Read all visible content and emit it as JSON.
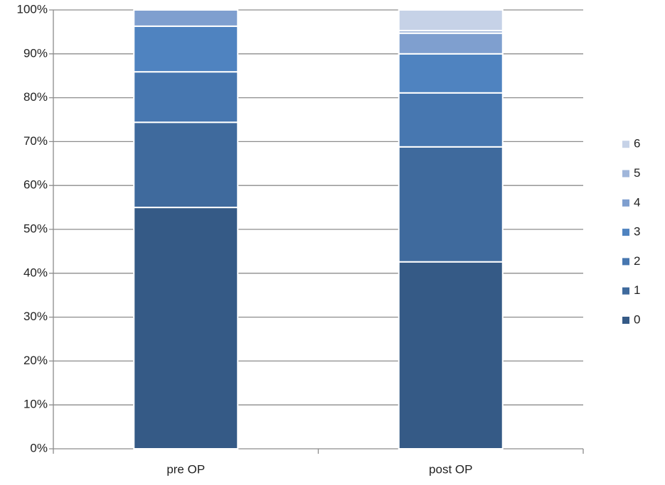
{
  "chart_data": {
    "type": "stacked-bar",
    "categories": [
      "pre OP",
      "post OP"
    ],
    "series": [
      {
        "name": "0",
        "color": "#355a86",
        "values": [
          55.0,
          42.6
        ]
      },
      {
        "name": "1",
        "color": "#3f6a9d",
        "values": [
          19.4,
          26.2
        ]
      },
      {
        "name": "2",
        "color": "#4777b0",
        "values": [
          11.5,
          12.3
        ]
      },
      {
        "name": "3",
        "color": "#4f83c0",
        "values": [
          10.4,
          8.9
        ]
      },
      {
        "name": "4",
        "color": "#7f9fcf",
        "values": [
          3.7,
          4.7
        ]
      },
      {
        "name": "5",
        "color": "#a0b6da",
        "values": [
          0,
          0.6
        ]
      },
      {
        "name": "6",
        "color": "#c6d2e7",
        "values": [
          0,
          4.7
        ]
      }
    ],
    "ylim": [
      0,
      100
    ],
    "yticks": [
      {
        "value": 0,
        "label": "0%"
      },
      {
        "value": 10,
        "label": "10%"
      },
      {
        "value": 20,
        "label": "20%"
      },
      {
        "value": 30,
        "label": "30%"
      },
      {
        "value": 40,
        "label": "40%"
      },
      {
        "value": 50,
        "label": "50%"
      },
      {
        "value": 60,
        "label": "60%"
      },
      {
        "value": 70,
        "label": "70%"
      },
      {
        "value": 80,
        "label": "80%"
      },
      {
        "value": 90,
        "label": "90%"
      },
      {
        "value": 100,
        "label": "100%"
      }
    ],
    "grid": true,
    "legend": "right"
  }
}
